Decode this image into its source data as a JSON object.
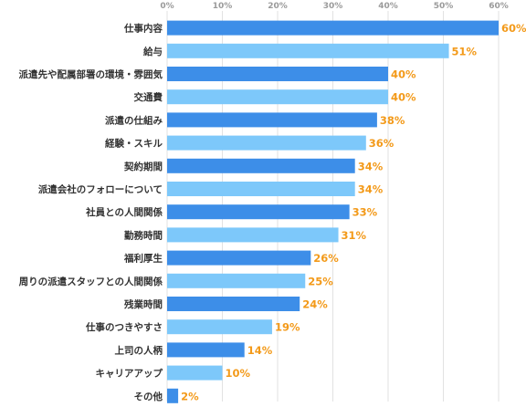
{
  "chart_data": {
    "type": "bar",
    "orientation": "horizontal",
    "categories": [
      "仕事内容",
      "給与",
      "派遣先や配属部署の環境・雰囲気",
      "交通費",
      "派遣の仕組み",
      "経験・スキル",
      "契約期間",
      "派遣会社のフォローについて",
      "社員との人間関係",
      "勤務時間",
      "福利厚生",
      "周りの派遣スタッフとの人間関係",
      "残業時間",
      "仕事のつきやすさ",
      "上司の人柄",
      "キャリアアップ",
      "その他"
    ],
    "values": [
      60,
      51,
      40,
      40,
      38,
      36,
      34,
      34,
      33,
      31,
      26,
      25,
      24,
      19,
      14,
      10,
      2
    ],
    "value_labels": [
      "60%",
      "51%",
      "40%",
      "40%",
      "38%",
      "36%",
      "34%",
      "34%",
      "33%",
      "31%",
      "26%",
      "25%",
      "24%",
      "19%",
      "14%",
      "10%",
      "2%"
    ],
    "ticks": [
      0,
      10,
      20,
      30,
      40,
      50,
      60
    ],
    "tick_labels": [
      "0%",
      "10%",
      "20%",
      "30%",
      "40%",
      "50%",
      "60%"
    ],
    "xlim": [
      0,
      65
    ],
    "grid": true,
    "colors": {
      "bar_dark": "#3d8ee8",
      "bar_light": "#7dc8fa",
      "value_label": "#f39a1a",
      "grid": "#e2e2e2"
    }
  }
}
